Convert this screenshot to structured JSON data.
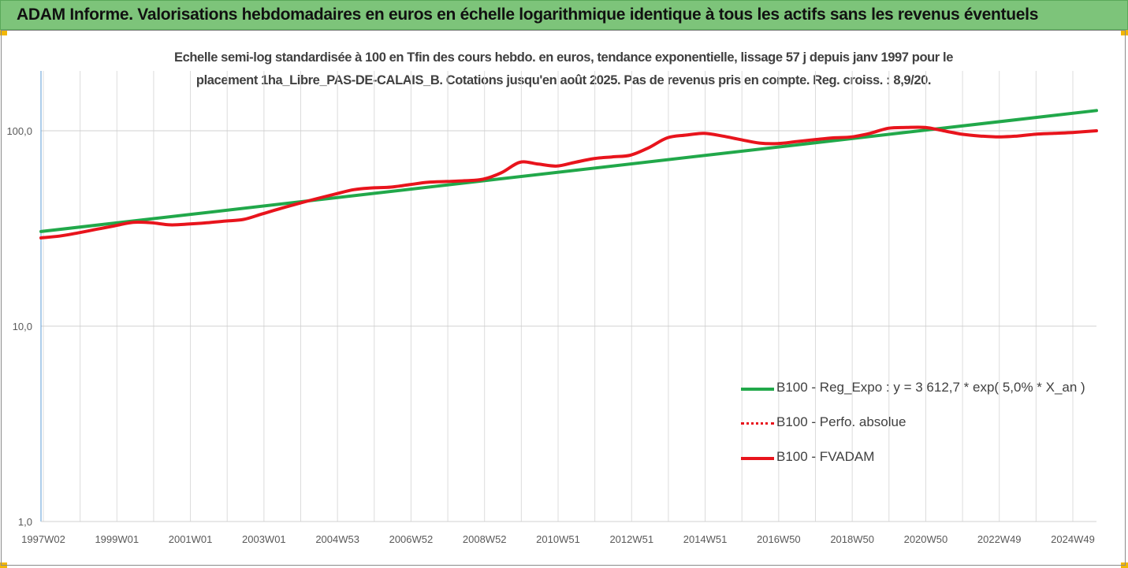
{
  "header": {
    "title": "ADAM Informe. Valorisations hebdomadaires en euros en échelle logarithmique identique à tous les actifs sans les revenus éventuels"
  },
  "chart_data": {
    "type": "line",
    "title_line1": "Echelle semi-log standardisée à 100 en Tfin des cours hebdo. en euros, tendance exponentielle, lissage 57 j depuis janv 1997 pour le",
    "title_line2": "placement 1ha_Libre_PAS-DE-CALAIS_B. Cotations jusqu'en août 2025. Pas de revenus pris en compte. Reg. croiss. : 8,9/20.",
    "y_scale": "log",
    "ylim": [
      1,
      200
    ],
    "yticks": [
      "1,0",
      "10,0",
      "100,0"
    ],
    "yticks_values": [
      1,
      10,
      100
    ],
    "x_tick_labels": [
      "1997W02",
      "1999W01",
      "2001W01",
      "2003W01",
      "2004W53",
      "2006W52",
      "2008W52",
      "2010W51",
      "2012W51",
      "2014W51",
      "2016W50",
      "2018W50",
      "2020W50",
      "2022W49",
      "2024W49"
    ],
    "grid": true,
    "legend_position": "right",
    "series": [
      {
        "name": "B100 - Reg_Expo : y = 3 612,7 * exp( 5,0% *  X_an )",
        "color": "#21a84a",
        "style": "solid",
        "x": [
          1997.0,
          2025.65
        ],
        "values": [
          30.5,
          127
        ]
      },
      {
        "name": "B100 - Perfo. absolue",
        "color": "#e8141c",
        "style": "dotted",
        "x": [],
        "values": []
      },
      {
        "name": "B100 - FVADAM",
        "color": "#e8141c",
        "style": "solid",
        "x": [
          1997.0,
          1997.5,
          1998.0,
          1998.5,
          1999.0,
          1999.5,
          2000.0,
          2000.5,
          2001.0,
          2001.5,
          2002.0,
          2002.5,
          2003.0,
          2003.5,
          2004.0,
          2004.5,
          2005.0,
          2005.5,
          2006.0,
          2006.5,
          2007.0,
          2007.5,
          2008.0,
          2008.5,
          2009.0,
          2009.5,
          2010.0,
          2010.5,
          2011.0,
          2011.5,
          2012.0,
          2012.5,
          2013.0,
          2013.5,
          2014.0,
          2014.5,
          2015.0,
          2015.5,
          2016.0,
          2016.5,
          2017.0,
          2017.5,
          2018.0,
          2018.5,
          2019.0,
          2019.5,
          2020.0,
          2020.5,
          2021.0,
          2021.5,
          2022.0,
          2022.5,
          2023.0,
          2023.5,
          2024.0,
          2024.5,
          2025.0,
          2025.65
        ],
        "values": [
          28.3,
          28.9,
          30.0,
          31.3,
          32.6,
          34.0,
          33.8,
          33.0,
          33.3,
          33.8,
          34.5,
          35.2,
          37.5,
          40.0,
          42.5,
          45.0,
          47.5,
          50.0,
          51.0,
          51.5,
          53.0,
          54.5,
          55.0,
          55.5,
          56.5,
          61.0,
          69.0,
          67.5,
          66.0,
          69.0,
          72.0,
          73.5,
          75.0,
          82.0,
          92.0,
          95.0,
          97.0,
          94.0,
          90.0,
          86.5,
          86.0,
          88.0,
          90.0,
          92.0,
          93.0,
          97.0,
          103.0,
          104.0,
          104.0,
          100.0,
          96.0,
          94.0,
          93.0,
          94.0,
          96.0,
          97.0,
          98.0,
          100.0
        ]
      }
    ]
  }
}
